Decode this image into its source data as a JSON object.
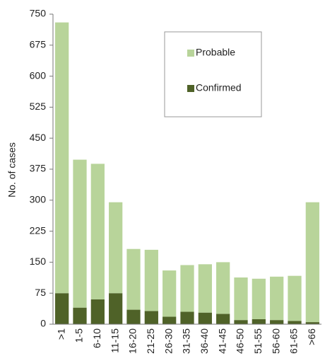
{
  "chart_data": {
    "type": "stacked_bar",
    "y_label": "No. of cases",
    "categories": [
      ">1",
      "1-5",
      "6-10",
      "11-15",
      "16-20",
      "21-25",
      "26-30",
      "31-35",
      "36-40",
      "41-45",
      "46-50",
      "51-55",
      "56-60",
      "61-65",
      ">66"
    ],
    "series": [
      {
        "name": "Confirmed",
        "color": "#4f6228",
        "values": [
          75,
          40,
          60,
          75,
          35,
          32,
          18,
          30,
          28,
          25,
          10,
          12,
          10,
          8,
          5
        ]
      },
      {
        "name": "Probable",
        "color": "#b8d49a",
        "values": [
          655,
          358,
          328,
          220,
          147,
          148,
          112,
          113,
          117,
          125,
          103,
          98,
          105,
          109,
          290
        ]
      }
    ],
    "ylim": [
      0,
      750
    ],
    "yticks": [
      0,
      75,
      150,
      225,
      300,
      375,
      450,
      525,
      600,
      675,
      750
    ],
    "grid": false
  }
}
